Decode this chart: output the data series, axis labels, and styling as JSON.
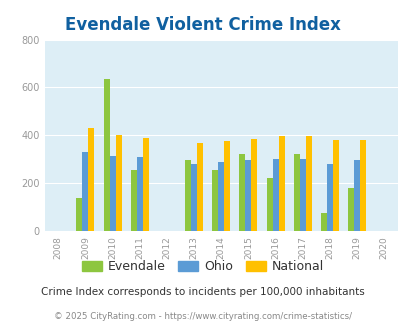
{
  "title": "Evendale Violent Crime Index",
  "years": [
    2009,
    2010,
    2011,
    2013,
    2014,
    2015,
    2016,
    2017,
    2018,
    2019
  ],
  "evendale": [
    137,
    635,
    257,
    295,
    257,
    323,
    220,
    322,
    75,
    178
  ],
  "ohio": [
    332,
    314,
    311,
    282,
    287,
    298,
    303,
    302,
    281,
    298
  ],
  "national": [
    429,
    403,
    389,
    367,
    376,
    383,
    399,
    399,
    382,
    381
  ],
  "bar_width": 0.22,
  "ylim": [
    0,
    800
  ],
  "yticks": [
    0,
    200,
    400,
    600,
    800
  ],
  "xlim_min": 2007.5,
  "xlim_max": 2020.5,
  "color_evendale": "#8dc63f",
  "color_ohio": "#5b9bd5",
  "color_national": "#ffc000",
  "bg_color": "#ddeef6",
  "title_color": "#1060a0",
  "title_fontsize": 12,
  "legend_fontsize": 9,
  "footer_note": "Crime Index corresponds to incidents per 100,000 inhabitants",
  "footer_copy": "© 2025 CityRating.com - https://www.cityrating.com/crime-statistics/",
  "xtick_positions": [
    2008,
    2009,
    2010,
    2011,
    2012,
    2013,
    2014,
    2015,
    2016,
    2017,
    2018,
    2019,
    2020
  ]
}
